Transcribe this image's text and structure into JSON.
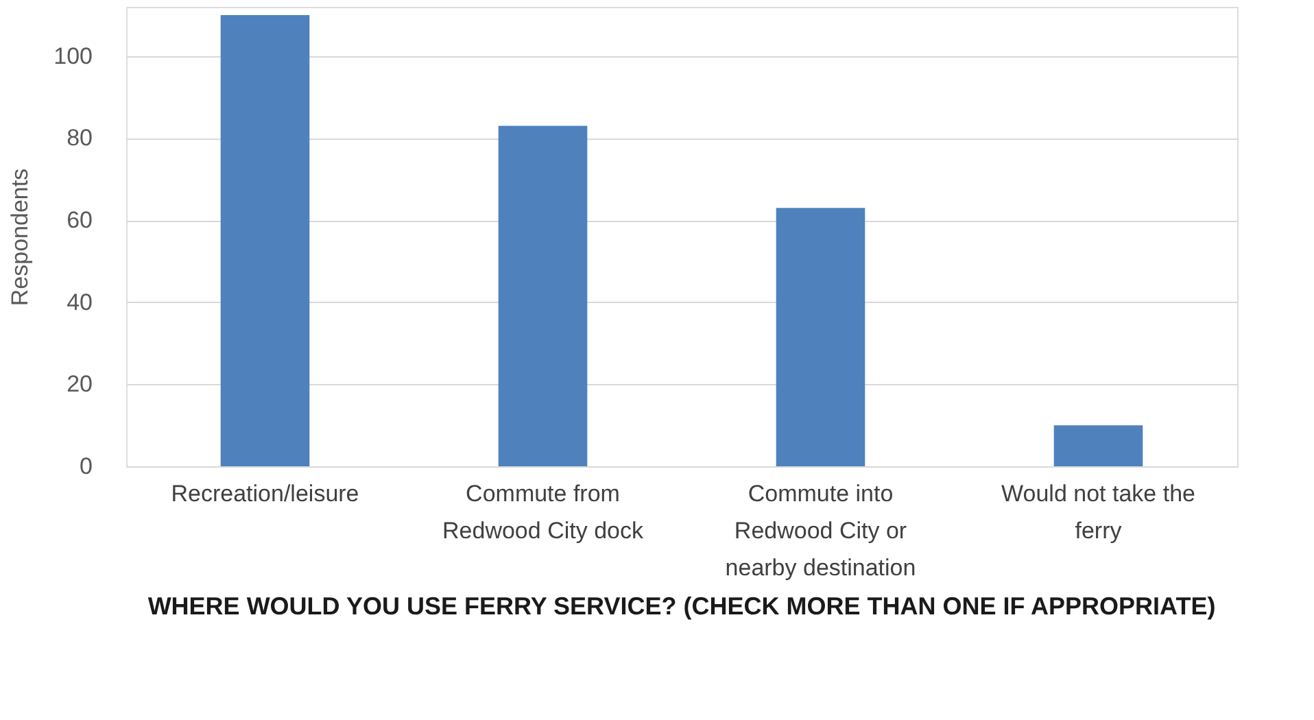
{
  "chart_data": {
    "type": "bar",
    "title": "WHERE WOULD YOU USE FERRY SERVICE? (CHECK MORE THAN ONE IF APPROPRIATE)",
    "ylabel": "Respondents",
    "categories": [
      "Recreation/leisure",
      "Commute from Redwood City dock",
      "Commute into Redwood City or nearby destination",
      "Would not take the ferry"
    ],
    "values": [
      110,
      83,
      63,
      10
    ],
    "color": "#4f81bd",
    "ylim": [
      0,
      112
    ],
    "yticks": [
      0,
      20,
      40,
      60,
      80,
      100
    ],
    "grid": "y"
  }
}
